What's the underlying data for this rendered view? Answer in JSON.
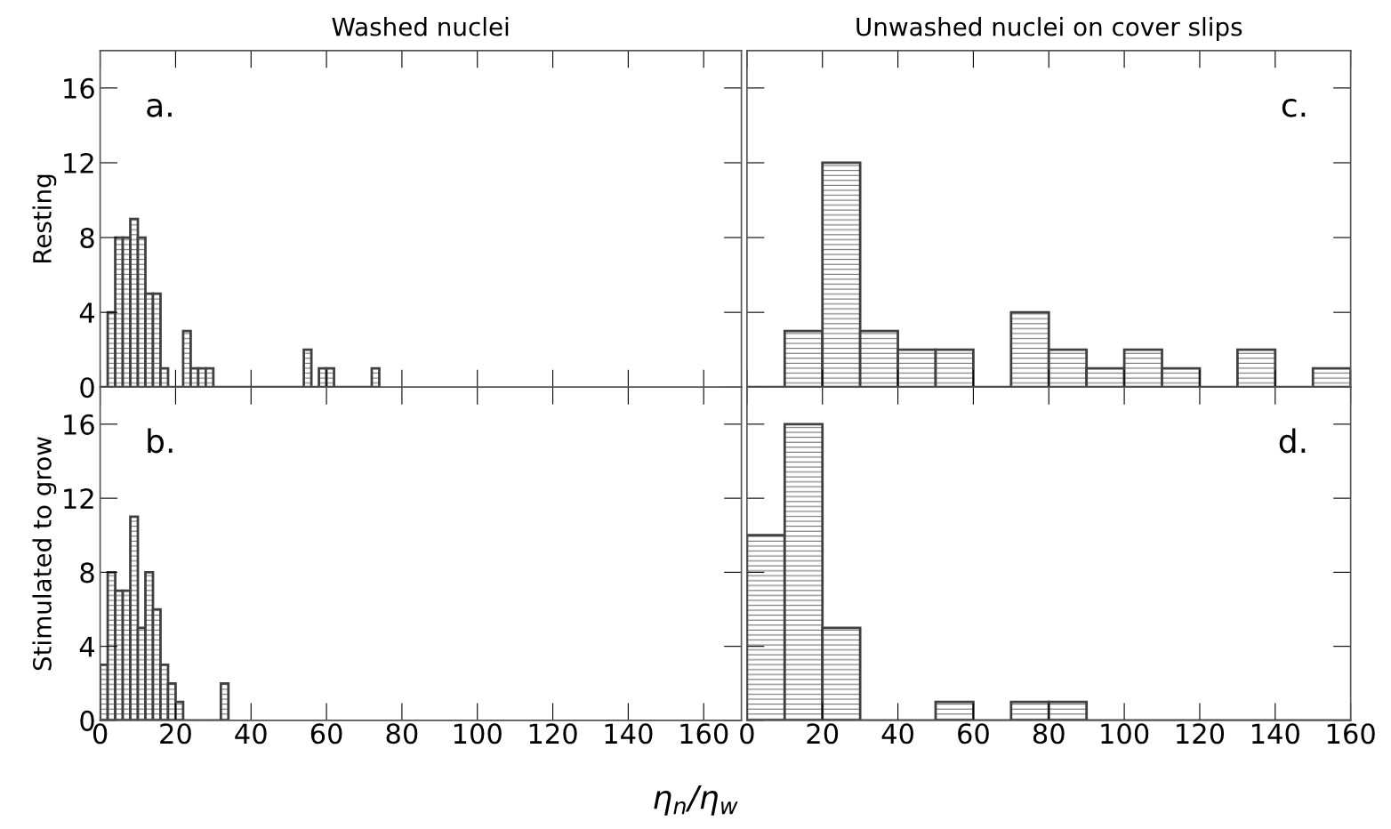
{
  "chart_data": [
    {
      "type": "histogram",
      "title": "Washed nuclei",
      "ylabel": "Resting",
      "annotations": [
        "a."
      ],
      "color": "#404040",
      "bins": [
        0,
        2,
        4,
        6,
        8,
        10,
        12,
        14,
        16,
        18,
        20,
        22,
        24,
        26,
        28,
        30,
        32,
        34,
        36,
        38,
        40,
        42,
        44,
        46,
        48,
        50,
        52,
        54,
        56,
        58,
        60,
        62,
        64,
        66,
        68,
        70,
        72,
        74
      ],
      "values": [
        0,
        4,
        8,
        8,
        9,
        8,
        5,
        5,
        1,
        0,
        0,
        3,
        1,
        1,
        1,
        0,
        0,
        0,
        0,
        0,
        0,
        0,
        0,
        0,
        0,
        0,
        0,
        2,
        0,
        1,
        1,
        0,
        0,
        0,
        0,
        0,
        1
      ],
      "xlim": [
        0,
        170
      ],
      "ylim": [
        0,
        18
      ],
      "xticks": [
        0,
        20,
        40,
        60,
        80,
        100,
        120,
        140,
        160
      ],
      "yticks": [
        0,
        4,
        8,
        12,
        16
      ],
      "tick_labels": "y",
      "grid": false
    },
    {
      "type": "histogram",
      "title": "Unwashed nuclei on cover slips",
      "annotations": [
        "c."
      ],
      "color": "#404040",
      "bins": [
        0,
        10,
        20,
        30,
        40,
        50,
        60,
        70,
        80,
        90,
        100,
        110,
        120,
        130,
        140,
        150,
        160
      ],
      "values": [
        0,
        3,
        12,
        3,
        2,
        2,
        0,
        4,
        2,
        1,
        2,
        1,
        0,
        2,
        0,
        1
      ],
      "xlim": [
        0,
        160
      ],
      "ylim": [
        0,
        18
      ],
      "xticks": [
        0,
        20,
        40,
        60,
        80,
        100,
        120,
        140,
        160
      ],
      "yticks": [
        0,
        4,
        8,
        12,
        16
      ],
      "tick_labels": false,
      "grid": false
    },
    {
      "type": "histogram",
      "ylabel": "Stimulated to grow",
      "xlabel": "η$_{n}$/η$_{w}$",
      "annotations": [
        "b."
      ],
      "color": "#404040",
      "bins": [
        0,
        2,
        4,
        6,
        8,
        10,
        12,
        14,
        16,
        18,
        20,
        22,
        24,
        26,
        28,
        30,
        32,
        34
      ],
      "values": [
        3,
        8,
        7,
        7,
        11,
        5,
        8,
        6,
        3,
        2,
        1,
        0,
        0,
        0,
        0,
        0,
        2
      ],
      "xlim": [
        0,
        170
      ],
      "ylim": [
        0,
        18
      ],
      "xticks": [
        0,
        20,
        40,
        60,
        80,
        100,
        120,
        140,
        160
      ],
      "yticks": [
        0,
        4,
        8,
        12,
        16
      ],
      "grid": false
    },
    {
      "type": "histogram",
      "annotations": [
        "d."
      ],
      "color": "#404040",
      "bins": [
        0,
        10,
        20,
        30,
        40,
        50,
        60,
        70,
        80,
        90,
        100,
        110,
        120,
        130,
        140,
        150,
        160
      ],
      "values": [
        10,
        16,
        5,
        0,
        0,
        1,
        0,
        1,
        1,
        0,
        0,
        0,
        0,
        0,
        0,
        0
      ],
      "xlim": [
        0,
        160
      ],
      "ylim": [
        0,
        18
      ],
      "xticks": [
        0,
        20,
        40,
        60,
        80,
        100,
        120,
        140,
        160
      ],
      "yticks": [
        0,
        4,
        8,
        12,
        16
      ],
      "tick_labels": "x",
      "grid": false
    }
  ]
}
